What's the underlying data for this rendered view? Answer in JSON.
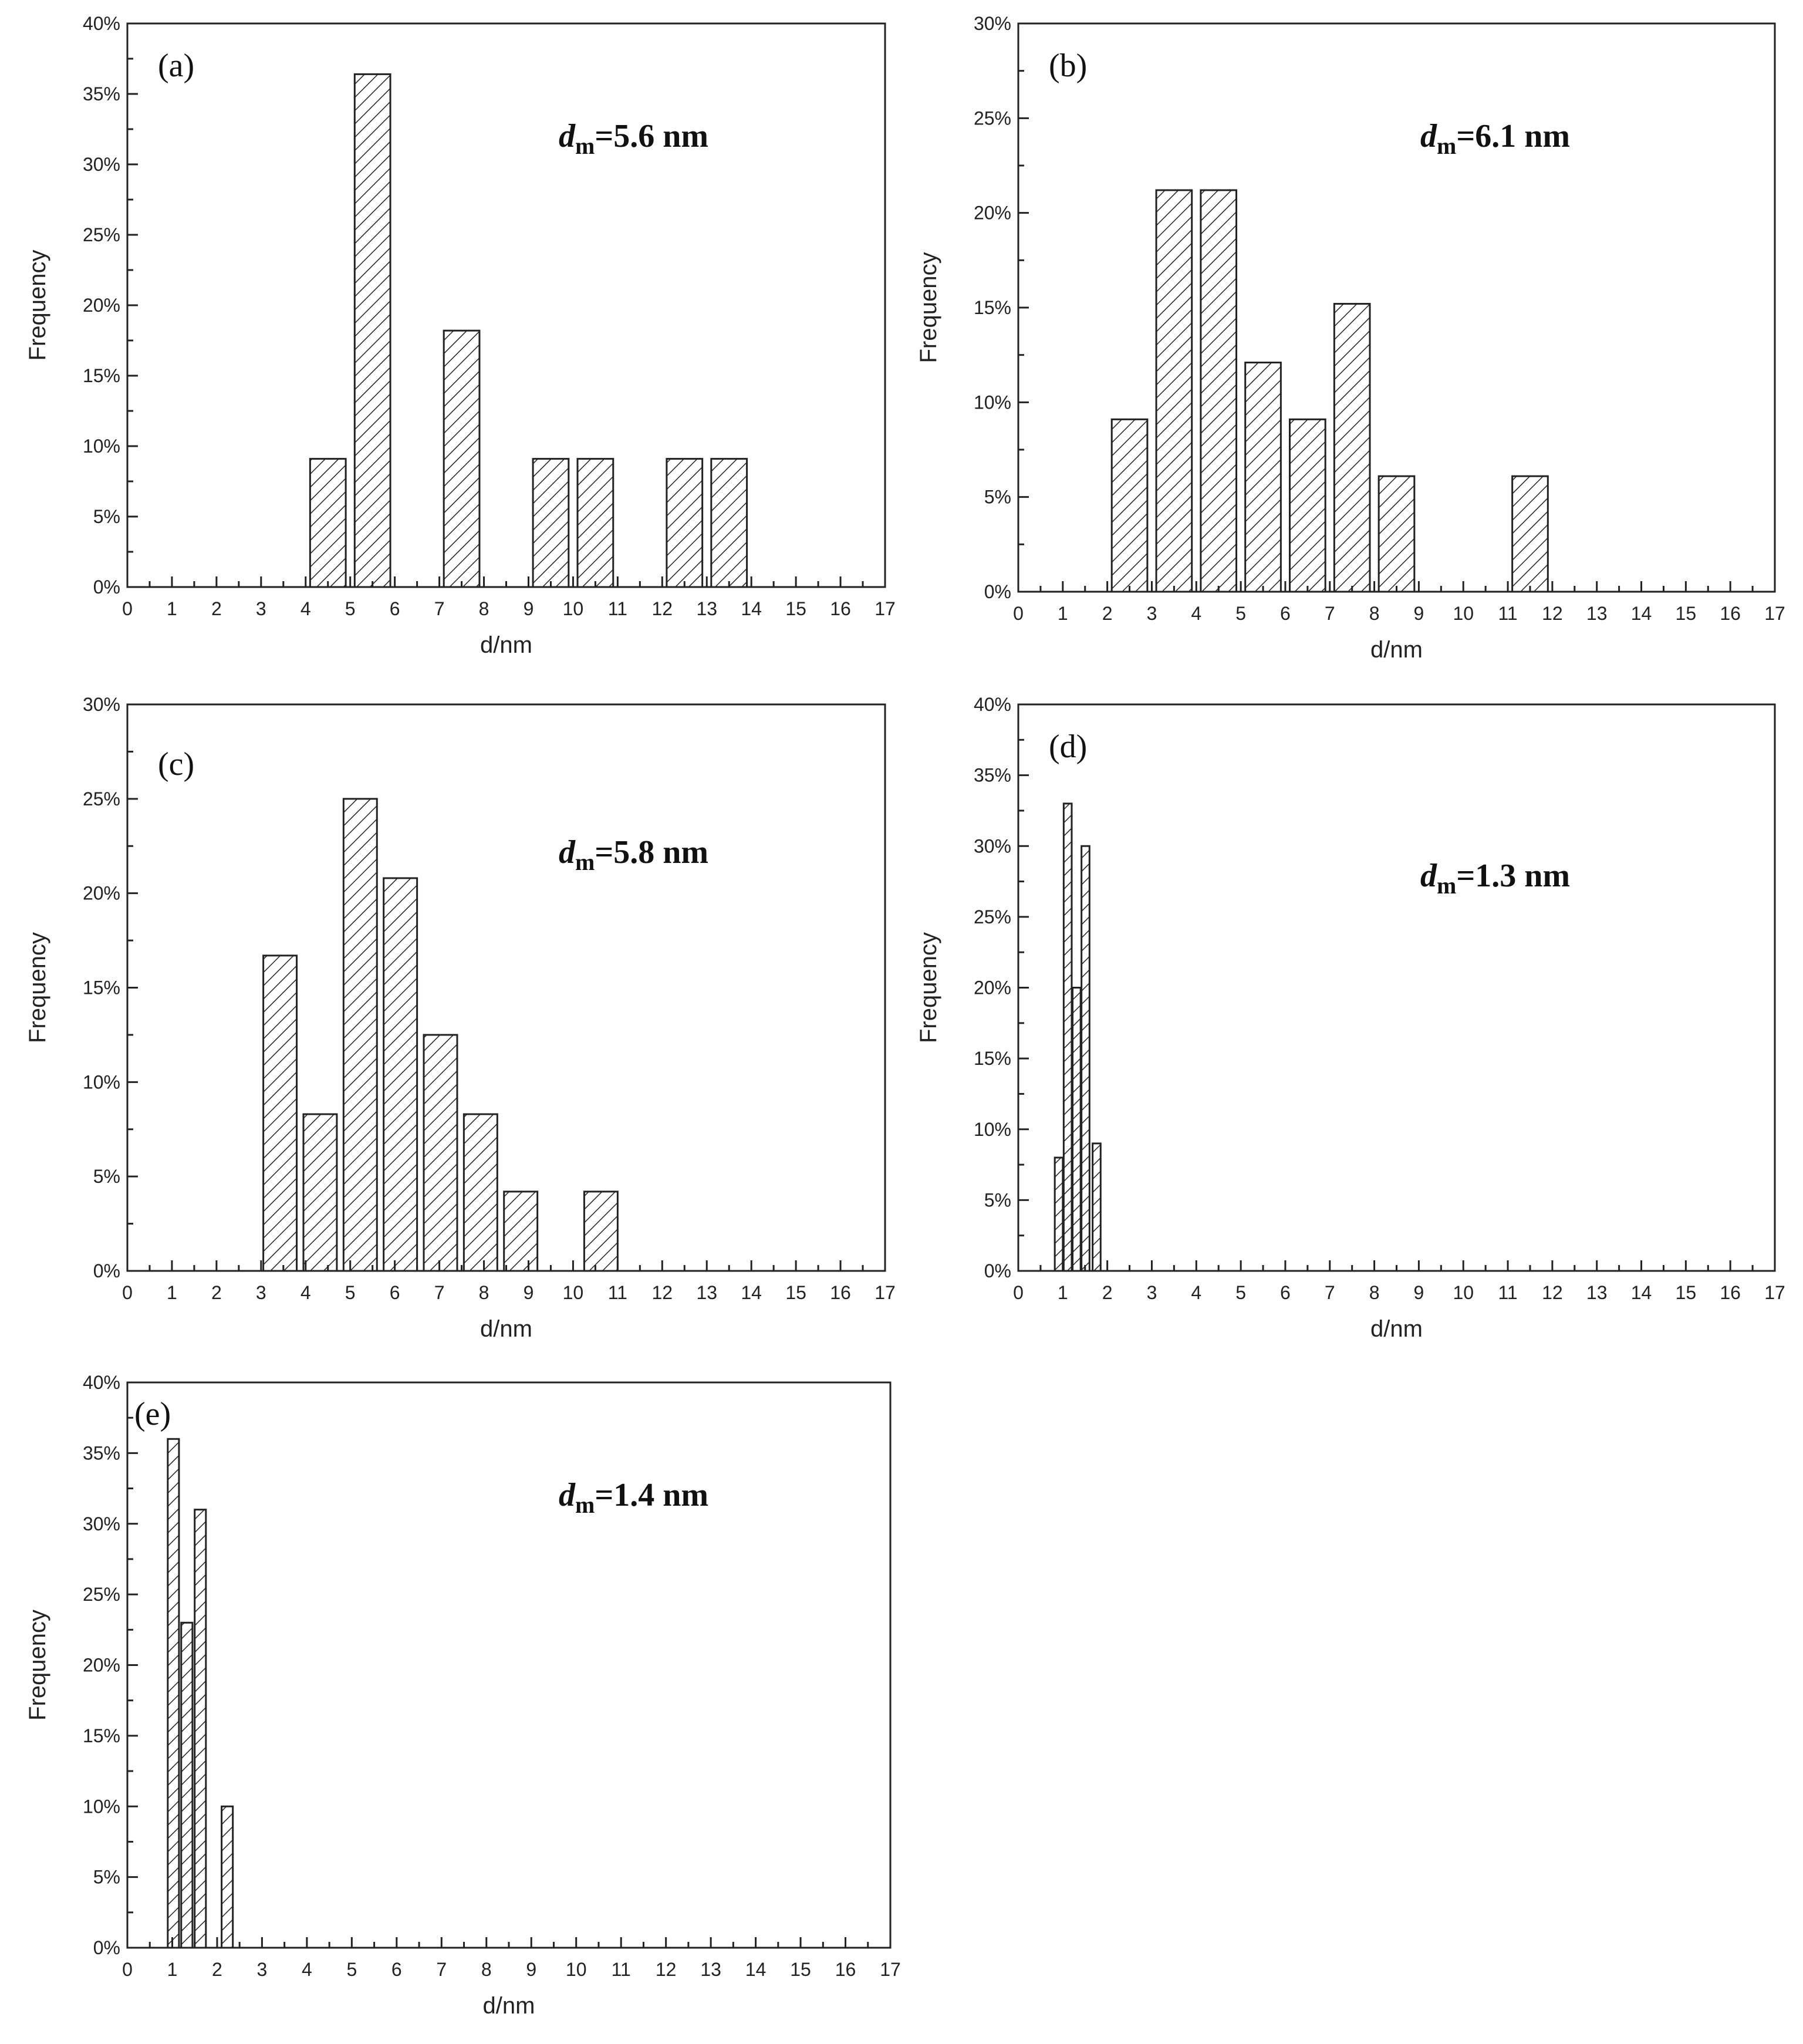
{
  "figure": {
    "panels": [
      {
        "id": "a",
        "label": "(a)",
        "annotation": {
          "var": "d",
          "sub": "m",
          "value": "=5.6 nm"
        }
      },
      {
        "id": "b",
        "label": "(b)",
        "annotation": {
          "var": "d",
          "sub": "m",
          "value": "=6.1 nm"
        }
      },
      {
        "id": "c",
        "label": "(c)",
        "annotation": {
          "var": "d",
          "sub": "m",
          "value": "=5.8 nm"
        }
      },
      {
        "id": "d",
        "label": "(d)",
        "annotation": {
          "var": "d",
          "sub": "m",
          "value": "=1.3 nm"
        }
      },
      {
        "id": "e",
        "label": "(e)",
        "annotation": {
          "var": "d",
          "sub": "m",
          "value": "=1.4 nm"
        }
      }
    ]
  },
  "chart_data": [
    {
      "type": "bar",
      "title": "(a)",
      "annotation": "dm=5.6 nm",
      "xlabel": "d/nm",
      "ylabel": "Frequency",
      "xlim": [
        0,
        17
      ],
      "ylim": [
        0,
        40
      ],
      "xticks": [
        0,
        1,
        2,
        3,
        4,
        5,
        6,
        7,
        8,
        9,
        10,
        11,
        12,
        13,
        14,
        15,
        16,
        17
      ],
      "yticks": [
        "0%",
        "5%",
        "10%",
        "15%",
        "20%",
        "25%",
        "30%",
        "35%",
        "40%"
      ],
      "bars": [
        {
          "from": 4.1,
          "to": 4.9,
          "value": 9.1
        },
        {
          "from": 5.1,
          "to": 5.9,
          "value": 36.4
        },
        {
          "from": 7.1,
          "to": 7.9,
          "value": 18.2
        },
        {
          "from": 9.1,
          "to": 9.9,
          "value": 9.1
        },
        {
          "from": 10.1,
          "to": 10.9,
          "value": 9.1
        },
        {
          "from": 12.1,
          "to": 12.9,
          "value": 9.1
        },
        {
          "from": 13.1,
          "to": 13.9,
          "value": 9.1
        }
      ]
    },
    {
      "type": "bar",
      "title": "(b)",
      "annotation": "dm=6.1 nm",
      "xlabel": "d/nm",
      "ylabel": "Frequency",
      "xlim": [
        0,
        17
      ],
      "ylim": [
        0,
        30
      ],
      "xticks": [
        0,
        1,
        2,
        3,
        4,
        5,
        6,
        7,
        8,
        9,
        10,
        11,
        12,
        13,
        14,
        15,
        16,
        17
      ],
      "yticks": [
        "0%",
        "5%",
        "10%",
        "15%",
        "20%",
        "25%",
        "30%"
      ],
      "bars": [
        {
          "from": 2.1,
          "to": 2.9,
          "value": 9.1
        },
        {
          "from": 3.1,
          "to": 3.9,
          "value": 21.2
        },
        {
          "from": 4.1,
          "to": 4.9,
          "value": 21.2
        },
        {
          "from": 5.1,
          "to": 5.9,
          "value": 12.1
        },
        {
          "from": 6.1,
          "to": 6.9,
          "value": 9.1
        },
        {
          "from": 7.1,
          "to": 7.9,
          "value": 15.2
        },
        {
          "from": 8.1,
          "to": 8.9,
          "value": 6.1
        },
        {
          "from": 11.1,
          "to": 11.9,
          "value": 6.1
        }
      ]
    },
    {
      "type": "bar",
      "title": "(c)",
      "annotation": "dm=5.8 nm",
      "xlabel": "d/nm",
      "ylabel": "Frequency",
      "xlim": [
        0,
        17
      ],
      "ylim": [
        0,
        30
      ],
      "xticks": [
        0,
        1,
        2,
        3,
        4,
        5,
        6,
        7,
        8,
        9,
        10,
        11,
        12,
        13,
        14,
        15,
        16,
        17
      ],
      "yticks": [
        "0%",
        "5%",
        "10%",
        "15%",
        "20%",
        "25%",
        "30%"
      ],
      "bars": [
        {
          "from": 3.05,
          "to": 3.8,
          "value": 16.7
        },
        {
          "from": 3.95,
          "to": 4.7,
          "value": 8.3
        },
        {
          "from": 4.85,
          "to": 5.6,
          "value": 25.0
        },
        {
          "from": 5.75,
          "to": 6.5,
          "value": 20.8
        },
        {
          "from": 6.65,
          "to": 7.4,
          "value": 12.5
        },
        {
          "from": 7.55,
          "to": 8.3,
          "value": 8.3
        },
        {
          "from": 8.45,
          "to": 9.2,
          "value": 4.2
        },
        {
          "from": 10.25,
          "to": 11.0,
          "value": 4.2
        }
      ]
    },
    {
      "type": "bar",
      "title": "(d)",
      "annotation": "dm=1.3 nm",
      "xlabel": "d/nm",
      "ylabel": "Frequency",
      "xlim": [
        0,
        17
      ],
      "ylim": [
        0,
        40
      ],
      "xticks": [
        0,
        1,
        2,
        3,
        4,
        5,
        6,
        7,
        8,
        9,
        10,
        11,
        12,
        13,
        14,
        15,
        16,
        17
      ],
      "yticks": [
        "0%",
        "5%",
        "10%",
        "15%",
        "20%",
        "25%",
        "30%",
        "35%",
        "40%"
      ],
      "bars": [
        {
          "from": 0.82,
          "to": 1.0,
          "value": 8
        },
        {
          "from": 1.02,
          "to": 1.2,
          "value": 33
        },
        {
          "from": 1.22,
          "to": 1.4,
          "value": 20
        },
        {
          "from": 1.42,
          "to": 1.6,
          "value": 30
        },
        {
          "from": 1.67,
          "to": 1.85,
          "value": 9
        }
      ]
    },
    {
      "type": "bar",
      "title": "(e)",
      "annotation": "dm=1.4 nm",
      "xlabel": "d/nm",
      "ylabel": "Frequency",
      "xlim": [
        0,
        17
      ],
      "ylim": [
        0,
        40
      ],
      "xticks": [
        0,
        1,
        2,
        3,
        4,
        5,
        6,
        7,
        8,
        9,
        10,
        11,
        12,
        13,
        14,
        15,
        16,
        17
      ],
      "yticks": [
        "0%",
        "5%",
        "10%",
        "15%",
        "20%",
        "25%",
        "30%",
        "35%",
        "40%"
      ],
      "bars": [
        {
          "from": 0.9,
          "to": 1.15,
          "value": 36
        },
        {
          "from": 1.2,
          "to": 1.45,
          "value": 23
        },
        {
          "from": 1.5,
          "to": 1.75,
          "value": 31
        },
        {
          "from": 2.1,
          "to": 2.35,
          "value": 10
        }
      ]
    }
  ]
}
